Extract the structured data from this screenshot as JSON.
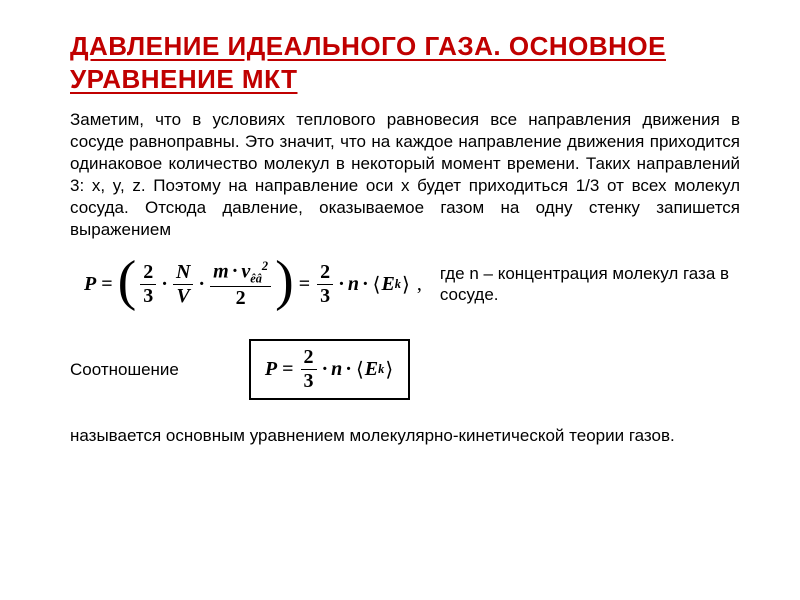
{
  "title": "ДАВЛЕНИЕ ИДЕАЛЬНОГО ГАЗА. ОСНОВНОЕ УРАВНЕНИЕ МКТ",
  "paragraph": "Заметим, что в условиях теплового равновесия все направления движения в сосуде равноправны. Это значит, что на каждое направление движения приходится одинаковое количество молекул в некоторый момент времени. Таких направлений 3: x, y, z. Поэтому на направление оси x будет приходиться 1/3 от всех молекул сосуда. Отсюда давление, оказываемое газом на одну стенку запишется выражением",
  "eq1": {
    "P": "P",
    "eq": "=",
    "two": "2",
    "three": "3",
    "N": "N",
    "V": "V",
    "m": "m",
    "v": "v",
    "vSub": "êâ",
    "vSup": "2",
    "den2": "2",
    "n": "n",
    "E": "E",
    "k": "k",
    "comma": ","
  },
  "eqNote": "где n – концентрация молекул газа в сосуде.",
  "relationLabel": "Соотношение",
  "eq2": {
    "P": "P",
    "eq": "=",
    "two": "2",
    "three": "3",
    "n": "n",
    "E": "E",
    "k": "k"
  },
  "footer": "называется основным уравнением молекулярно-кинетической теории газов.",
  "colors": {
    "accent": "#c00000",
    "text": "#000000",
    "bg": "#ffffff"
  },
  "fonts": {
    "body": "Arial",
    "math": "Times New Roman"
  }
}
